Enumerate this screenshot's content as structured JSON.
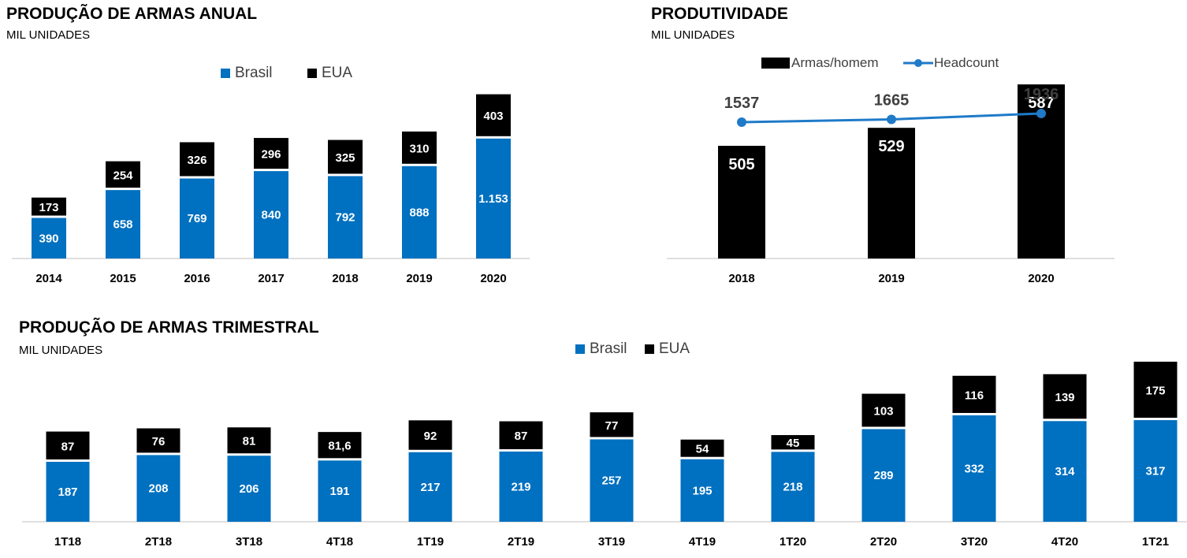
{
  "colors": {
    "brasil": "#0070c0",
    "eua": "#000000",
    "headcount": "#1f7ac8",
    "axis": "#bfbfbf"
  },
  "annual": {
    "title": "PRODUÇÃO DE ARMAS ANUAL",
    "subtitle": "MIL UNIDADES",
    "legend_brasil": "Brasil",
    "legend_eua": "EUA"
  },
  "productivity": {
    "title": "PRODUTIVIDADE",
    "subtitle": "MIL UNIDADES",
    "legend_bar": "Armas/homem",
    "legend_line": "Headcount"
  },
  "quarterly": {
    "title": "PRODUÇÃO DE ARMAS TRIMESTRAL",
    "subtitle": "MIL UNIDADES",
    "legend_brasil": "Brasil",
    "legend_eua": "EUA"
  },
  "chart_data": [
    {
      "type": "bar",
      "stacked": true,
      "title": "PRODUÇÃO DE ARMAS ANUAL",
      "subtitle": "MIL UNIDADES",
      "categories": [
        "2014",
        "2015",
        "2016",
        "2017",
        "2018",
        "2019",
        "2020"
      ],
      "series": [
        {
          "name": "Brasil",
          "values": [
            390,
            658,
            769,
            840,
            792,
            888,
            1153
          ],
          "labels": [
            "390",
            "658",
            "769",
            "840",
            "792",
            "888",
            "1.153"
          ]
        },
        {
          "name": "EUA",
          "values": [
            173,
            254,
            326,
            296,
            325,
            310,
            403
          ],
          "labels": [
            "173",
            "254",
            "326",
            "296",
            "325",
            "310",
            "403"
          ]
        }
      ],
      "legend": "top"
    },
    {
      "type": "bar",
      "title": "PRODUTIVIDADE",
      "subtitle": "MIL UNIDADES",
      "categories": [
        "2018",
        "2019",
        "2020"
      ],
      "series": [
        {
          "name": "Armas/homem",
          "kind": "bar",
          "values": [
            505,
            529,
            587
          ],
          "labels": [
            "505",
            "529",
            "587"
          ]
        },
        {
          "name": "Headcount",
          "kind": "line",
          "values": [
            1537,
            1665,
            1936
          ],
          "labels": [
            "1537",
            "1665",
            "1936"
          ]
        }
      ],
      "legend": "top"
    },
    {
      "type": "bar",
      "stacked": true,
      "title": "PRODUÇÃO DE ARMAS TRIMESTRAL",
      "subtitle": "MIL UNIDADES",
      "categories": [
        "1T18",
        "2T18",
        "3T18",
        "4T18",
        "1T19",
        "2T19",
        "3T19",
        "4T19",
        "1T20",
        "2T20",
        "3T20",
        "4T20",
        "1T21"
      ],
      "series": [
        {
          "name": "Brasil",
          "values": [
            187,
            208,
            206,
            191,
            217,
            219,
            257,
            195,
            218,
            289,
            332,
            314,
            317
          ],
          "labels": [
            "187",
            "208",
            "206",
            "191",
            "217",
            "219",
            "257",
            "195",
            "218",
            "289",
            "332",
            "314",
            "317"
          ]
        },
        {
          "name": "EUA",
          "values": [
            87,
            76,
            81,
            81.6,
            92,
            87,
            77,
            54,
            45,
            103,
            116,
            139,
            175
          ],
          "labels": [
            "87",
            "76",
            "81",
            "81,6",
            "92",
            "87",
            "77",
            "54",
            "45",
            "103",
            "116",
            "139",
            "175"
          ]
        }
      ],
      "legend": "top"
    }
  ]
}
